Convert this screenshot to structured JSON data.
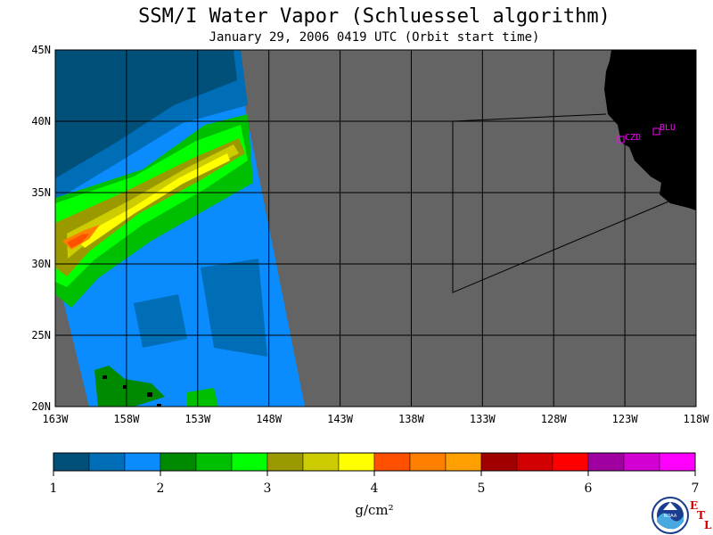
{
  "title": "SSM/I Water Vapor (Schluessel algorithm)",
  "subtitle": "January 29, 2006  0419 UTC  (Orbit start time)",
  "map": {
    "lat_labels": [
      "45N",
      "40N",
      "35N",
      "30N",
      "25N",
      "20N"
    ],
    "lon_labels": [
      "163W",
      "158W",
      "153W",
      "148W",
      "143W",
      "138W",
      "133W",
      "128W",
      "123W",
      "118W"
    ],
    "lon_range": [
      -163,
      -118
    ],
    "lat_range": [
      20,
      45
    ],
    "stations": [
      {
        "name": "CZD"
      },
      {
        "name": "BLU"
      }
    ],
    "colors": {
      "no_data": "#646464",
      "land": "#000000",
      "graticule": "#000000",
      "station": "#ff00ff"
    }
  },
  "colorbar": {
    "colors": [
      "#00507a",
      "#006eb6",
      "#0a8cff",
      "#008a00",
      "#00be00",
      "#00ff00",
      "#9a9a00",
      "#cccc00",
      "#ffff00",
      "#ff5000",
      "#ff8000",
      "#ffa000",
      "#a00000",
      "#d20000",
      "#ff0000",
      "#a000a0",
      "#d200d2",
      "#ff00ff"
    ],
    "labels": [
      "1",
      "2",
      "3",
      "4",
      "5",
      "6",
      "7"
    ],
    "units": "g/cm²"
  },
  "logo": {
    "noaa_text": "NOAA",
    "etl": [
      "E",
      "T",
      "L"
    ]
  }
}
